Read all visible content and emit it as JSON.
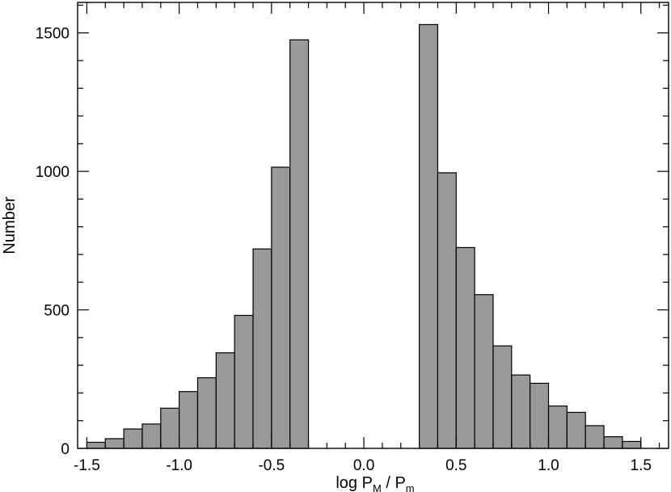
{
  "chart_data": {
    "type": "bar",
    "title": "",
    "xlabel": {
      "base": "log P",
      "sub1": "M",
      "mid": " / P",
      "sub2": "m"
    },
    "ylabel": "Number",
    "xlim": [
      -1.55,
      1.65
    ],
    "ylim": [
      0,
      1610
    ],
    "bin_width": 0.1,
    "xticks": [
      -1.5,
      -1.0,
      -0.5,
      0.0,
      0.5,
      1.0,
      1.5
    ],
    "xtick_labels": [
      "-1.5",
      "-1.0",
      "-0.5",
      "0.0",
      "0.5",
      "1.0",
      "1.5"
    ],
    "yticks": [
      0,
      500,
      1000,
      1500
    ],
    "ytick_labels": [
      "0",
      "500",
      "1000",
      "1500"
    ],
    "grid": false,
    "bars": [
      {
        "x0": -1.5,
        "value": 22
      },
      {
        "x0": -1.4,
        "value": 35
      },
      {
        "x0": -1.3,
        "value": 70
      },
      {
        "x0": -1.2,
        "value": 88
      },
      {
        "x0": -1.1,
        "value": 145
      },
      {
        "x0": -1.0,
        "value": 205
      },
      {
        "x0": -0.9,
        "value": 255
      },
      {
        "x0": -0.8,
        "value": 345
      },
      {
        "x0": -0.7,
        "value": 480
      },
      {
        "x0": -0.6,
        "value": 720
      },
      {
        "x0": -0.5,
        "value": 1015
      },
      {
        "x0": -0.4,
        "value": 1475
      },
      {
        "x0": 0.3,
        "value": 1530
      },
      {
        "x0": 0.4,
        "value": 995
      },
      {
        "x0": 0.5,
        "value": 725
      },
      {
        "x0": 0.6,
        "value": 555
      },
      {
        "x0": 0.7,
        "value": 370
      },
      {
        "x0": 0.8,
        "value": 265
      },
      {
        "x0": 0.9,
        "value": 235
      },
      {
        "x0": 1.0,
        "value": 153
      },
      {
        "x0": 1.1,
        "value": 130
      },
      {
        "x0": 1.2,
        "value": 82
      },
      {
        "x0": 1.3,
        "value": 42
      },
      {
        "x0": 1.4,
        "value": 25
      }
    ],
    "colors": {
      "bar_fill": "#999999",
      "bar_stroke": "#000000"
    }
  }
}
